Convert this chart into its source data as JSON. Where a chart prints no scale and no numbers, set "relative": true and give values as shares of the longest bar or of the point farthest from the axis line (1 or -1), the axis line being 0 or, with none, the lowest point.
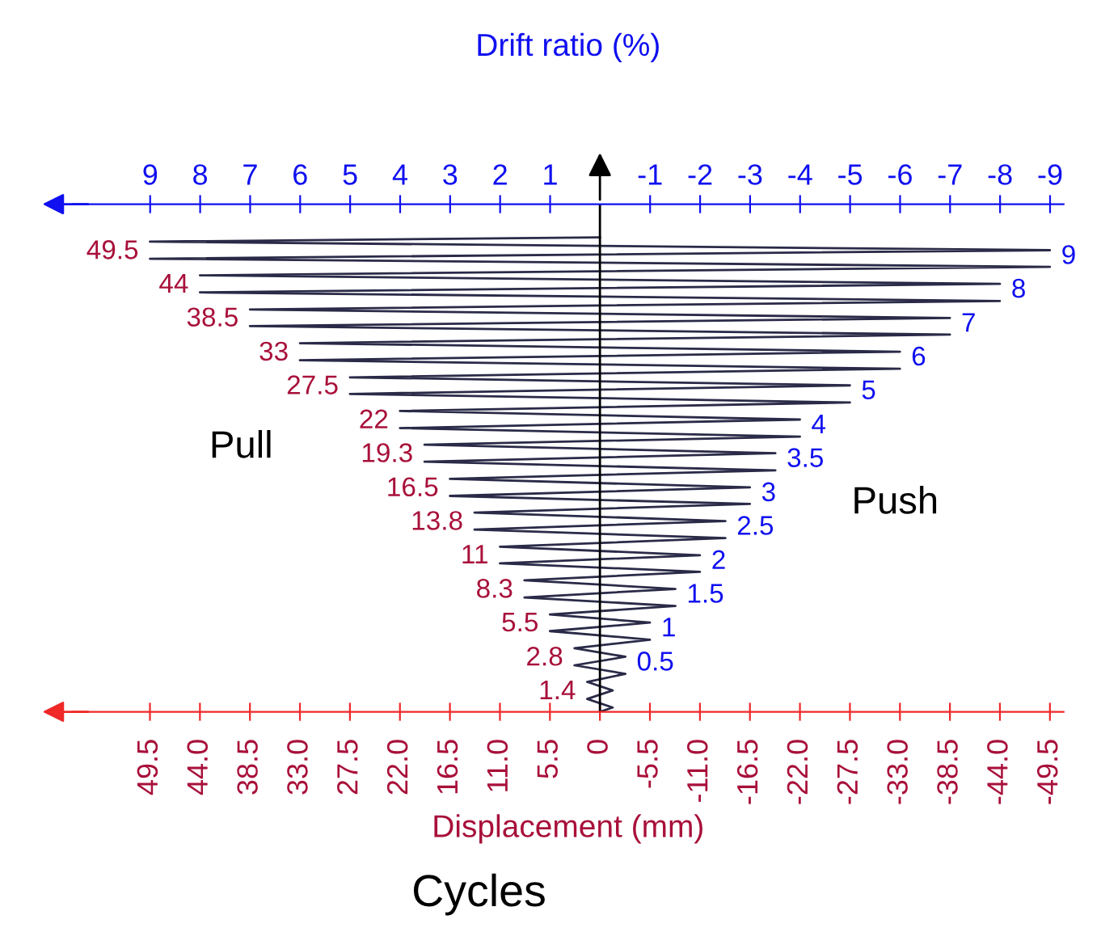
{
  "chart_data": {
    "type": "line",
    "xlabel": "Displacement (mm)",
    "x2label": "Drift ratio (%)",
    "relative": true,
    "series": [
      {
        "color": "#2a2a48",
        "x": [
          0,
          -1.4,
          1.4,
          -1.4,
          1.4,
          -2.8,
          2.8,
          -2.8,
          2.8,
          -5.5,
          5.5,
          -5.5,
          5.5,
          -8.3,
          8.3,
          -8.3,
          8.3,
          -11,
          11,
          -11,
          11,
          -13.8,
          13.8,
          -13.8,
          13.8,
          -16.5,
          16.5,
          -16.5,
          16.5,
          -19.3,
          19.3,
          -19.3,
          19.3,
          -22,
          22,
          -22,
          22,
          -27.5,
          27.5,
          -27.5,
          27.5,
          -33,
          33,
          -33,
          33,
          -38.5,
          38.5,
          -38.5,
          38.5,
          -44,
          44,
          -44,
          44,
          -49.5,
          49.5,
          -49.5,
          49.5,
          0
        ],
        "values": [
          0,
          0.009,
          0.027,
          0.045,
          0.063,
          0.08,
          0.098,
          0.116,
          0.134,
          0.152,
          0.17,
          0.188,
          0.205,
          0.223,
          0.241,
          0.259,
          0.277,
          0.295,
          0.313,
          0.33,
          0.348,
          0.366,
          0.384,
          0.402,
          0.42,
          0.438,
          0.455,
          0.473,
          0.491,
          0.509,
          0.527,
          0.545,
          0.563,
          0.58,
          0.598,
          0.616,
          0.634,
          0.652,
          0.67,
          0.688,
          0.705,
          0.723,
          0.741,
          0.759,
          0.777,
          0.795,
          0.813,
          0.83,
          0.848,
          0.866,
          0.884,
          0.902,
          0.92,
          0.938,
          0.955,
          0.973,
          0.991,
          1
        ]
      }
    ],
    "xlim": [
      58,
      -51
    ],
    "xticks": [
      49.5,
      {
        "value": 44,
        "label": "44.0"
      },
      38.5,
      {
        "value": 33,
        "label": "33.0"
      },
      27.5,
      {
        "value": 22,
        "label": "22.0"
      },
      16.5,
      {
        "value": 11,
        "label": "11.0"
      },
      5.5,
      0,
      -5.5,
      {
        "value": -11,
        "label": "-11.0"
      },
      -16.5,
      {
        "value": -22,
        "label": "-22.0"
      },
      -27.5,
      {
        "value": -33,
        "label": "-33.0"
      },
      -38.5,
      {
        "value": -44,
        "label": "-44.0"
      },
      -49.5
    ],
    "x2lim": [
      10.55,
      -9.27
    ],
    "x2ticks": [
      9,
      8,
      7,
      6,
      5,
      4,
      3,
      2,
      1,
      -1,
      -2,
      -3,
      -4,
      -5,
      -6,
      -7,
      -8,
      -9
    ],
    "tick_labels": "x",
    "ref_lines": [
      {
        "axis": "x",
        "value": 0,
        "color": "#000000"
      }
    ],
    "annotations": [
      "Pull",
      "Push",
      "Cycles",
      {
        "text": "1.4",
        "x": 1.4,
        "y": 0.027
      },
      {
        "text": "2.8",
        "x": 2.8,
        "y": 0.098
      },
      {
        "text": "5.5",
        "x": 5.5,
        "y": 0.17
      },
      {
        "text": "8.3",
        "x": 8.3,
        "y": 0.241
      },
      {
        "text": "11",
        "x": 11,
        "y": 0.313
      },
      {
        "text": "13.8",
        "x": 13.8,
        "y": 0.384
      },
      {
        "text": "16.5",
        "x": 16.5,
        "y": 0.455
      },
      {
        "text": "19.3",
        "x": 19.3,
        "y": 0.527
      },
      {
        "text": "22",
        "x": 22,
        "y": 0.598
      },
      {
        "text": "27.5",
        "x": 27.5,
        "y": 0.67
      },
      {
        "text": "33",
        "x": 33,
        "y": 0.741
      },
      {
        "text": "38.5",
        "x": 38.5,
        "y": 0.813
      },
      {
        "text": "44",
        "x": 44,
        "y": 0.884
      },
      {
        "text": "49.5",
        "x": 49.5,
        "y": 0.955
      },
      {
        "text": "0.5",
        "x": -2.8,
        "y": 0.116
      },
      {
        "text": "1",
        "x": -5.5,
        "y": 0.188
      },
      {
        "text": "1.5",
        "x": -8.3,
        "y": 0.259
      },
      {
        "text": "2",
        "x": -11,
        "y": 0.33
      },
      {
        "text": "2.5",
        "x": -13.8,
        "y": 0.402
      },
      {
        "text": "3",
        "x": -16.5,
        "y": 0.473
      },
      {
        "text": "3.5",
        "x": -19.3,
        "y": 0.545
      },
      {
        "text": "4",
        "x": -22,
        "y": 0.616
      },
      {
        "text": "5",
        "x": -27.5,
        "y": 0.688
      },
      {
        "text": "6",
        "x": -33,
        "y": 0.759
      },
      {
        "text": "7",
        "x": -38.5,
        "y": 0.83
      },
      {
        "text": "8",
        "x": -44,
        "y": 0.902
      },
      {
        "text": "9",
        "x": -49.5,
        "y": 0.973
      }
    ]
  }
}
